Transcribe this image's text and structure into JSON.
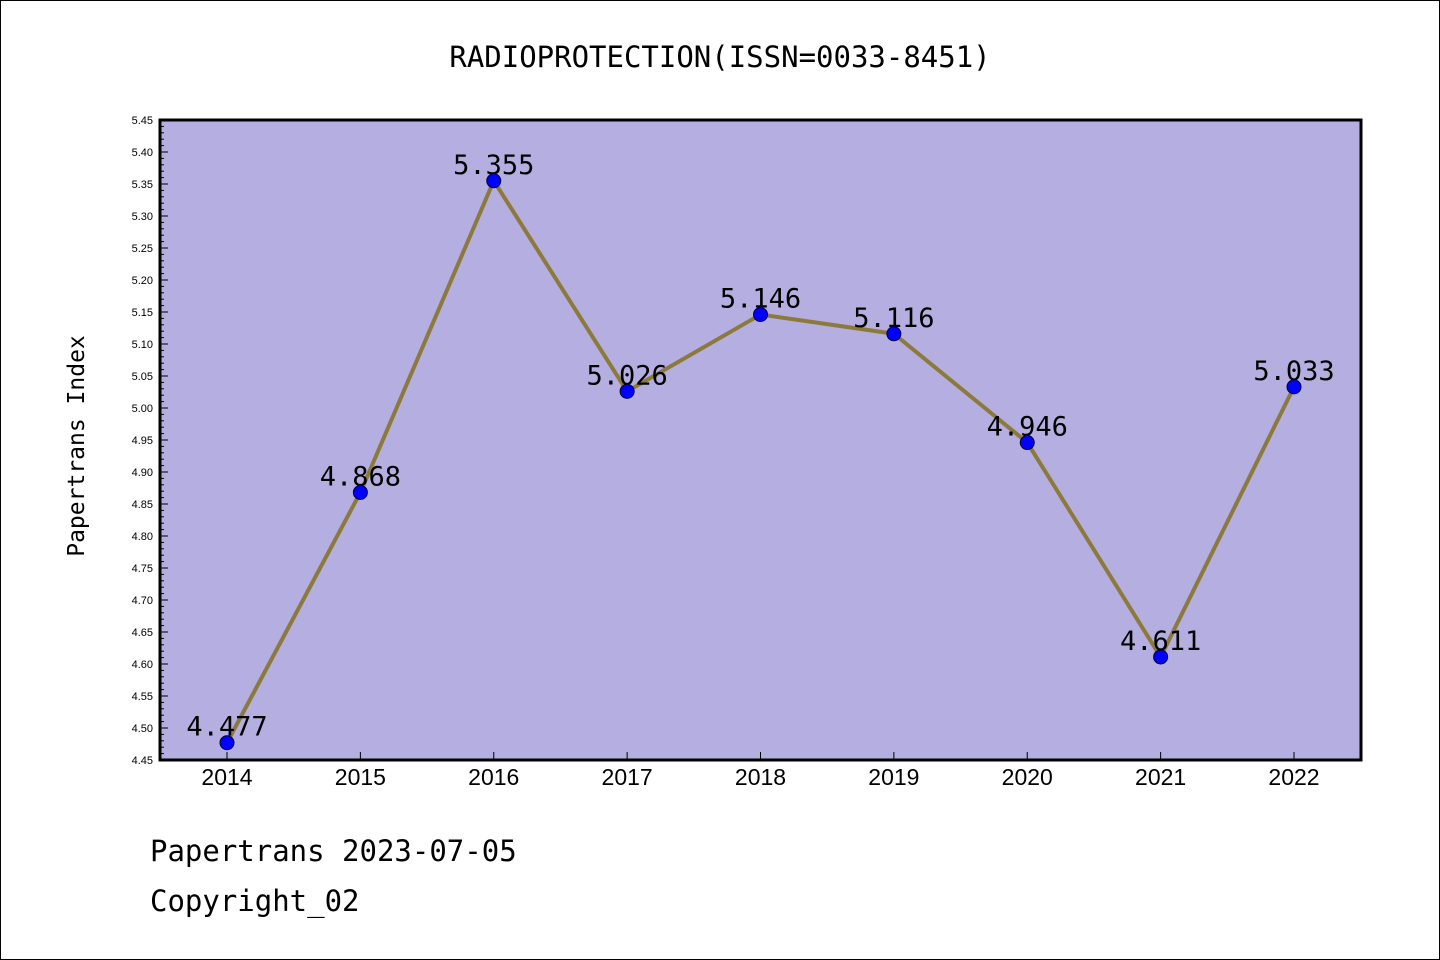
{
  "chart_data": {
    "type": "line",
    "title": "RADIOPROTECTION(ISSN=0033-8451)",
    "xlabel": "",
    "ylabel": "Papertrans Index",
    "categories": [
      "2014",
      "2015",
      "2016",
      "2017",
      "2018",
      "2019",
      "2020",
      "2021",
      "2022"
    ],
    "series": [
      {
        "values": [
          4.477,
          4.868,
          5.355,
          5.026,
          5.146,
          5.116,
          4.946,
          4.611,
          5.033
        ],
        "labels": [
          "4.477",
          "4.868",
          "5.355",
          "5.026",
          "5.146",
          "5.116",
          "4.946",
          "4.611",
          "5.033"
        ]
      }
    ],
    "ylim": [
      4.45,
      5.45
    ],
    "yticks": [
      "4.45",
      "4.50",
      "4.55",
      "4.60",
      "4.65",
      "4.70",
      "4.75",
      "4.80",
      "4.85",
      "4.90",
      "4.95",
      "5.00",
      "5.05",
      "5.10",
      "5.15",
      "5.20",
      "5.25",
      "5.30",
      "5.35",
      "5.40",
      "5.45"
    ],
    "grid": false,
    "colors": {
      "plot_background": "#b5aee0",
      "line": "#8b7a3c",
      "marker": "#0000ff"
    }
  },
  "footer": {
    "line1": "Papertrans 2023-07-05",
    "line2": "Copyright_02"
  }
}
